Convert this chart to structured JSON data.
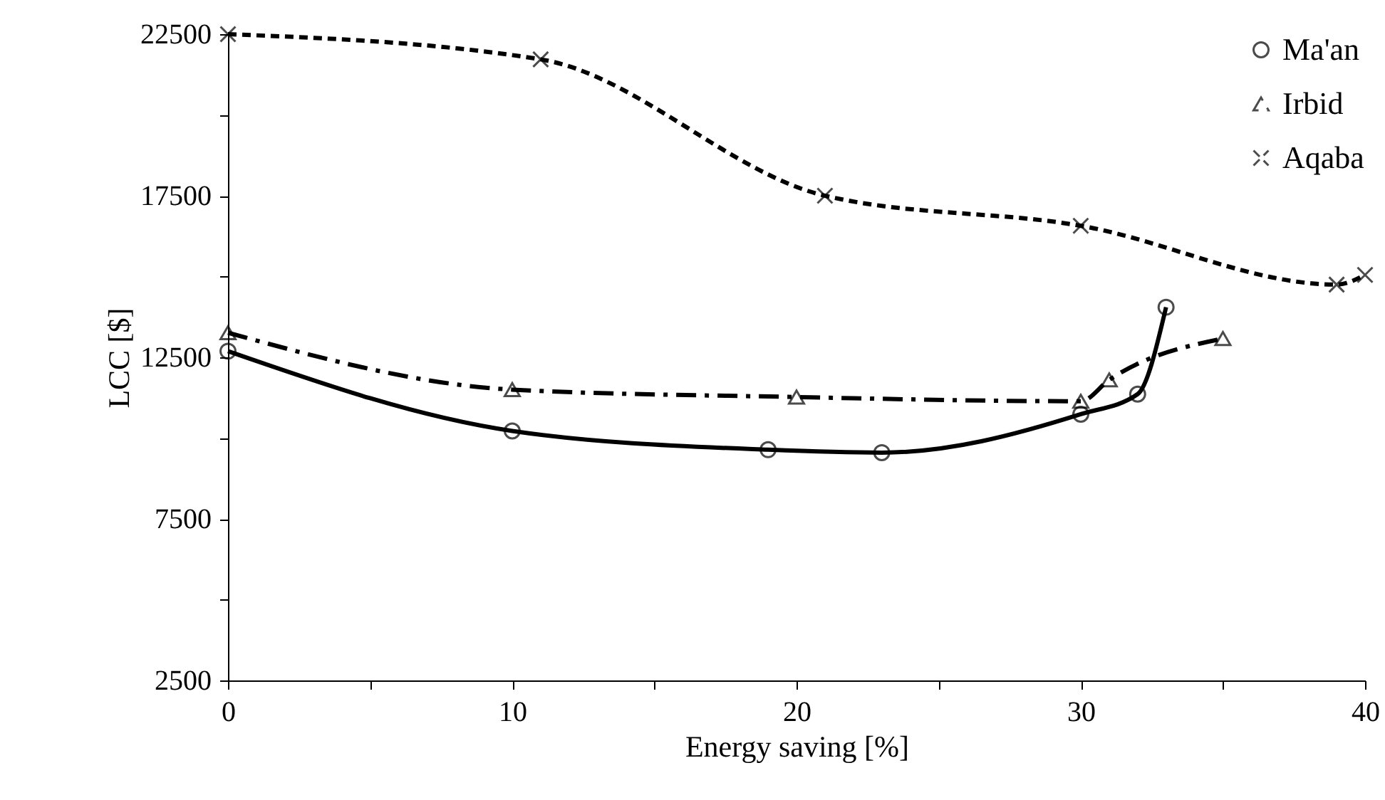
{
  "chart_data": {
    "type": "line",
    "xlabel": "Energy saving [%]",
    "ylabel": "LCC [$]",
    "xlim": [
      0,
      40
    ],
    "xticks": [
      0,
      {
        "value": 5,
        "label": null
      },
      10,
      {
        "value": 15,
        "label": null
      },
      20,
      {
        "value": 25,
        "label": null
      },
      30,
      {
        "value": 35,
        "label": null
      },
      40
    ],
    "ylim": [
      2500,
      22500
    ],
    "yticks": [
      2500,
      {
        "value": 5000,
        "label": null
      },
      7500,
      {
        "value": 10000,
        "label": null
      },
      12500,
      {
        "value": 15000,
        "label": null
      },
      17500,
      {
        "value": 20000,
        "label": null
      },
      22500
    ],
    "grid": false,
    "legend": "top right",
    "series": [
      {
        "name": "Ma'an",
        "color": "#000000",
        "marker": "circle",
        "line_style": "solid",
        "x": [
          0,
          10,
          19,
          23,
          30,
          32,
          33
        ],
        "values": [
          12690,
          10220,
          9640,
          9550,
          10740,
          11360,
          14050
        ]
      },
      {
        "name": "Irbid",
        "color": "#000000",
        "marker": "triangle",
        "line_style": "dashed",
        "x": [
          0,
          10,
          20,
          30,
          31,
          35
        ],
        "values": [
          13260,
          11500,
          11270,
          11140,
          11800,
          13080
        ]
      },
      {
        "name": "Aqaba",
        "color": "#000000",
        "marker": "cross",
        "line_style": "dotted",
        "x": [
          0,
          11,
          21,
          30,
          39,
          40
        ],
        "values": [
          22500,
          21720,
          17500,
          16570,
          14750,
          15050
        ]
      }
    ]
  }
}
